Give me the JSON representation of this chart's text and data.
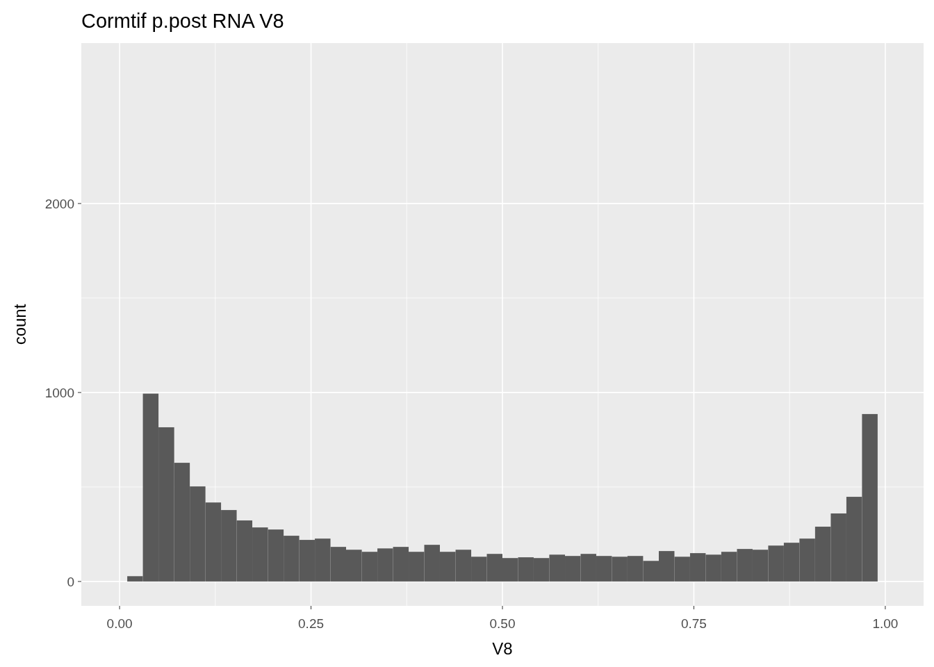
{
  "chart_data": {
    "type": "histogram",
    "title": "Cormtif p.post RNA V8",
    "xlabel": "V8",
    "ylabel": "count",
    "color": "#595959",
    "bins": [
      0.01,
      0.0304,
      0.0508,
      0.0713,
      0.0917,
      0.1121,
      0.1325,
      0.1529,
      0.1733,
      0.1937,
      0.2142,
      0.2346,
      0.255,
      0.2754,
      0.2958,
      0.3163,
      0.3367,
      0.3571,
      0.3775,
      0.3979,
      0.4183,
      0.4388,
      0.4592,
      0.4796,
      0.5,
      0.5204,
      0.5408,
      0.5612,
      0.5817,
      0.6021,
      0.6225,
      0.6429,
      0.6633,
      0.6837,
      0.7042,
      0.7246,
      0.745,
      0.7654,
      0.7858,
      0.8063,
      0.8267,
      0.8471,
      0.8675,
      0.8879,
      0.9083,
      0.9288,
      0.9492,
      0.9696,
      0.99
    ],
    "values": [
      28,
      994,
      816,
      628,
      503,
      418,
      378,
      323,
      286,
      275,
      242,
      220,
      227,
      183,
      168,
      157,
      175,
      183,
      157,
      194,
      157,
      168,
      131,
      146,
      124,
      128,
      124,
      142,
      135,
      146,
      135,
      131,
      135,
      109,
      161,
      131,
      150,
      142,
      157,
      172,
      168,
      190,
      205,
      227,
      290,
      360,
      448,
      886
    ],
    "xlim": [
      -0.05,
      1.05
    ],
    "xticks": [
      {
        "value": 0,
        "label": "0.00"
      },
      {
        "value": 0.25,
        "label": "0.25"
      },
      {
        "value": 0.5,
        "label": "0.50"
      },
      {
        "value": 0.75,
        "label": "0.75"
      },
      {
        "value": 1,
        "label": "1.00"
      }
    ],
    "ylim": [
      -129,
      2849
    ],
    "yticks": [
      0,
      1000,
      2000
    ],
    "grid": true
  }
}
